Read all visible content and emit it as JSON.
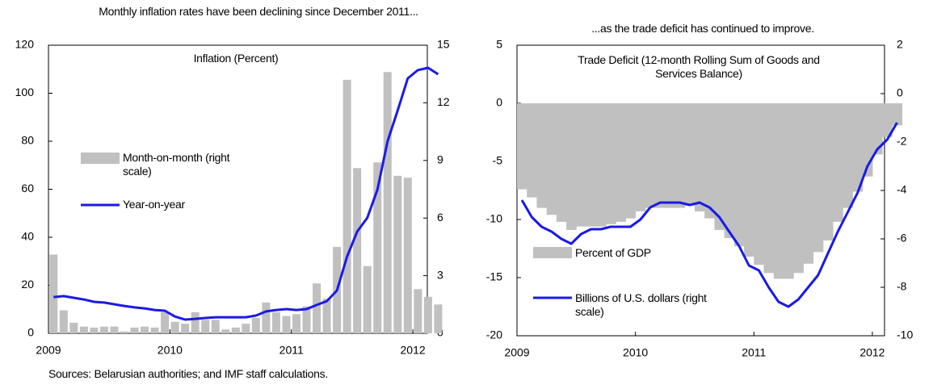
{
  "chart_data": [
    {
      "type": "combo",
      "title": "Monthly inflation rates have been declining since December 2011...",
      "subtitle": "Inflation (Percent)",
      "categories": [
        "2009",
        null,
        null,
        null,
        null,
        null,
        null,
        null,
        null,
        null,
        null,
        null,
        "2010",
        null,
        null,
        null,
        null,
        null,
        null,
        null,
        null,
        null,
        null,
        null,
        "2011",
        null,
        null,
        null,
        null,
        null,
        null,
        null,
        null,
        null,
        null,
        null,
        "2012",
        null,
        null
      ],
      "series": [
        {
          "name": "Month-on-month (right scale)",
          "type": "bar",
          "axis": "y2",
          "color": "#c0c0c0",
          "values": [
            4.1,
            1.2,
            0.55,
            0.35,
            0.3,
            0.35,
            0.35,
            0.1,
            0.3,
            0.35,
            0.3,
            1.1,
            0.6,
            0.5,
            1.1,
            0.7,
            0.7,
            0.2,
            0.3,
            0.5,
            0.8,
            1.6,
            1.1,
            0.9,
            1.0,
            1.4,
            2.6,
            1.8,
            4.5,
            13.2,
            8.6,
            3.5,
            8.9,
            13.6,
            8.2,
            8.1,
            2.3,
            1.9,
            1.5
          ]
        },
        {
          "name": "Year-on-year",
          "type": "line",
          "color": "#1a1ae6",
          "values": [
            15.1,
            15.5,
            14.8,
            14.1,
            13.1,
            12.8,
            12.1,
            11.4,
            10.8,
            10.4,
            9.7,
            9.4,
            7,
            5.7,
            6,
            6.4,
            6.7,
            6.7,
            6.7,
            6.7,
            7.4,
            9.1,
            9.7,
            10.1,
            9.7,
            10.1,
            11.8,
            13.4,
            17.8,
            31.9,
            42.4,
            48.1,
            59.8,
            80,
            92.8,
            106.2,
            109.6,
            110.6,
            107.9
          ]
        }
      ],
      "ylim": [
        0,
        120
      ],
      "yticks": [
        0,
        20,
        40,
        60,
        80,
        100,
        120
      ],
      "y2lim": [
        0,
        15
      ],
      "y2ticks": [
        0,
        3,
        6,
        9,
        12,
        15
      ]
    },
    {
      "type": "combo",
      "title": "...as the trade deficit has continued to improve.",
      "subtitle": "Trade Deficit (12-month Rolling Sum of Goods and Services Balance)",
      "categories": [
        "2009",
        null,
        null,
        null,
        null,
        null,
        null,
        null,
        null,
        null,
        null,
        null,
        "2010",
        null,
        null,
        null,
        null,
        null,
        null,
        null,
        null,
        null,
        null,
        null,
        "2011",
        null,
        null,
        null,
        null,
        null,
        null,
        null,
        null,
        null,
        null,
        null,
        "2012",
        null,
        null
      ],
      "series": [
        {
          "name": "Percent of GDP",
          "type": "bar",
          "color": "#c0c0c0",
          "values": [
            -7.4,
            -8.1,
            -9.0,
            -9.6,
            -10.2,
            -10.9,
            -10.6,
            -10.6,
            -10.6,
            -10.4,
            -10.2,
            -9.9,
            -9.3,
            -9.0,
            -9.0,
            -9.0,
            -9.0,
            -8.8,
            -9.3,
            -9.9,
            -10.9,
            -11.6,
            -12.3,
            -13.2,
            -13.9,
            -14.6,
            -15.1,
            -15.1,
            -14.6,
            -13.8,
            -12.8,
            -11.8,
            -10.2,
            -9.0,
            -7.6,
            -6.3,
            -4.4,
            -2.9,
            -1.9
          ]
        },
        {
          "name": "Billions of U.S. dollars (right scale)",
          "type": "line",
          "axis": "y2",
          "color": "#1a1ae6",
          "values": [
            -4.4,
            -5.1,
            -5.5,
            -5.7,
            -6.0,
            -6.2,
            -5.8,
            -5.6,
            -5.6,
            -5.5,
            -5.5,
            -5.5,
            -5.2,
            -4.7,
            -4.5,
            -4.5,
            -4.5,
            -4.6,
            -4.5,
            -4.7,
            -5.1,
            -5.7,
            -6.3,
            -7.1,
            -7.3,
            -8.0,
            -8.6,
            -8.8,
            -8.5,
            -8.0,
            -7.5,
            -6.6,
            -5.7,
            -4.9,
            -4.1,
            -3.0,
            -2.3,
            -1.9,
            -1.2
          ]
        }
      ],
      "ylim": [
        -20,
        5
      ],
      "yticks": [
        -20,
        -15,
        -10,
        -5,
        0,
        5
      ],
      "y2lim": [
        -10,
        2
      ],
      "y2ticks": [
        -10,
        -8,
        -6,
        -4,
        -2,
        0,
        2
      ]
    }
  ],
  "source": "Sources: Belarusian authorities; and IMF staff calculations."
}
